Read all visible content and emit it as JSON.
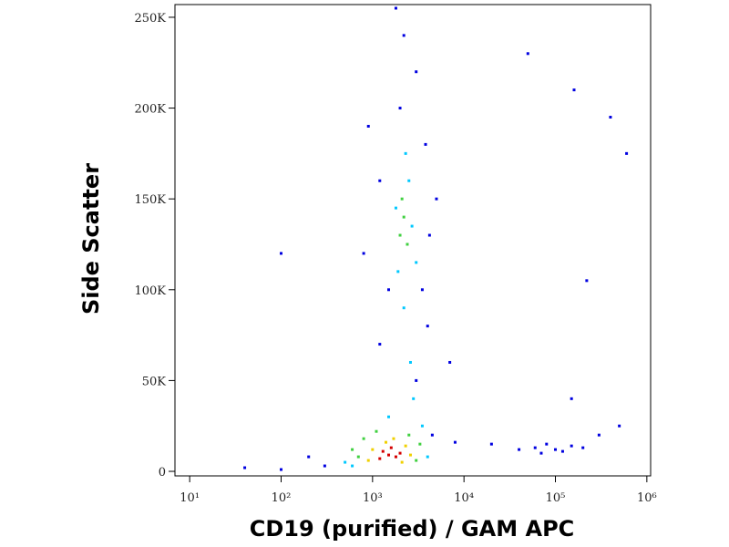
{
  "chart_data": {
    "type": "scatter",
    "x_label": "CD19 (purified) / GAM APC",
    "y_label": "Side Scatter",
    "xscale": "log",
    "xlim": [
      6.9,
      1100000
    ],
    "ylim": [
      -2500,
      257000
    ],
    "xticks": [
      {
        "value": 10,
        "label": "10¹"
      },
      {
        "value": 100,
        "label": "10²"
      },
      {
        "value": 1000,
        "label": "10³"
      },
      {
        "value": 10000,
        "label": "10⁴"
      },
      {
        "value": 100000,
        "label": "10⁵"
      },
      {
        "value": 1000000,
        "label": "10⁶"
      }
    ],
    "yticks": [
      0,
      {
        "value": 50000,
        "label": "50K"
      },
      {
        "value": 100000,
        "label": "100K"
      },
      {
        "value": 150000,
        "label": "150K"
      },
      {
        "value": 200000,
        "label": "200K"
      },
      {
        "value": 250000,
        "label": "250K"
      }
    ],
    "series": [
      {
        "color": "#0000e0",
        "x": [
          300,
          200,
          4500,
          3000,
          1200,
          4000,
          1500,
          3500,
          1200,
          3800,
          2000,
          3000,
          2200,
          1800,
          900,
          5000,
          800,
          4200,
          60000,
          80000,
          120000,
          150000,
          100000,
          200000,
          70000,
          40000,
          300000,
          500000,
          100,
          40,
          7000,
          8000,
          20000,
          150000,
          600000,
          400000,
          220000,
          160000,
          100,
          50000
        ],
        "values": [
          3000,
          8000,
          20000,
          50000,
          70000,
          80000,
          100000,
          100000,
          160000,
          180000,
          200000,
          220000,
          240000,
          255000,
          190000,
          150000,
          120000,
          130000,
          13000,
          15000,
          11000,
          14000,
          12000,
          13000,
          10000,
          12000,
          20000,
          25000,
          1000,
          2000,
          60000,
          16000,
          15000,
          40000,
          175000,
          195000,
          105000,
          210000,
          120000,
          230000
        ]
      },
      {
        "color": "#00c8ff",
        "x": [
          500,
          3500,
          2800,
          1500,
          2600,
          2200,
          1900,
          2500,
          2300,
          2700,
          1800,
          3000,
          600,
          4000
        ],
        "values": [
          5000,
          25000,
          40000,
          30000,
          60000,
          90000,
          110000,
          160000,
          175000,
          135000,
          145000,
          115000,
          3000,
          8000
        ]
      },
      {
        "color": "#40d040",
        "x": [
          700,
          800,
          3000,
          2500,
          1100,
          600,
          3300,
          2200,
          2000,
          2400,
          2100
        ],
        "values": [
          8000,
          18000,
          6000,
          20000,
          22000,
          12000,
          15000,
          140000,
          130000,
          125000,
          150000
        ]
      },
      {
        "color": "#f0d000",
        "x": [
          1000,
          2300,
          900,
          1400,
          2100,
          2600,
          1700
        ],
        "values": [
          12000,
          14000,
          6000,
          16000,
          5000,
          9000,
          18000
        ]
      },
      {
        "color": "#d40000",
        "x": [
          1500,
          1300,
          1800,
          1600,
          1200,
          2000
        ],
        "values": [
          9000,
          11000,
          8000,
          13000,
          7000,
          10000
        ]
      }
    ]
  }
}
